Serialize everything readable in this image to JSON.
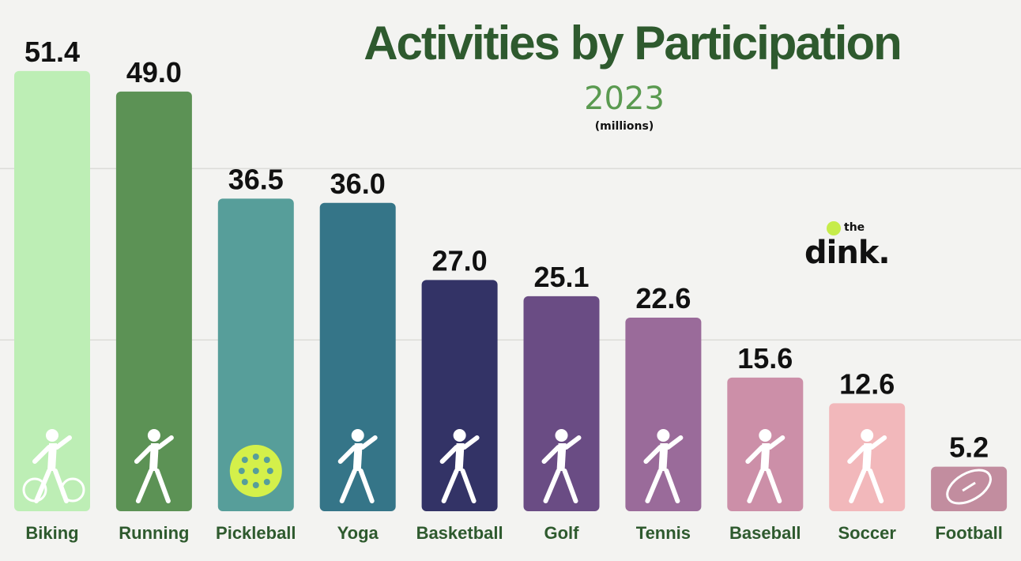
{
  "chart_data": {
    "type": "bar",
    "title": "Activities by Participation",
    "subtitle": "2023",
    "unit_note": "(millions)",
    "categories": [
      "Biking",
      "Running",
      "Pickleball",
      "Yoga",
      "Basketball",
      "Golf",
      "Tennis",
      "Baseball",
      "Soccer",
      "Football"
    ],
    "values": [
      51.4,
      49.0,
      36.5,
      36.0,
      27.0,
      25.1,
      22.6,
      15.6,
      12.6,
      5.2
    ],
    "value_labels": [
      "51.4",
      "49.0",
      "36.5",
      "36.0",
      "27.0",
      "25.1",
      "22.6",
      "15.6",
      "12.6",
      "5.2"
    ],
    "colors": [
      "#bdeeb5",
      "#5c9255",
      "#579e9a",
      "#357588",
      "#333366",
      "#6a4c84",
      "#9a6b9a",
      "#cc8fa8",
      "#f2b8bb",
      "#c28d9f"
    ],
    "icons": [
      "cyclist-icon",
      "runner-icon",
      "pickleball-icon",
      "yoga-icon",
      "basketball-player-icon",
      "golfer-icon",
      "tennis-player-icon",
      "baseball-batter-icon",
      "soccer-player-icon",
      "football-icon"
    ],
    "ylim": [
      0,
      52
    ],
    "grid": true,
    "gridlines": [
      20,
      40
    ],
    "label_color": "#2e5a2e"
  },
  "logo": {
    "small": "the",
    "main": "dink."
  }
}
